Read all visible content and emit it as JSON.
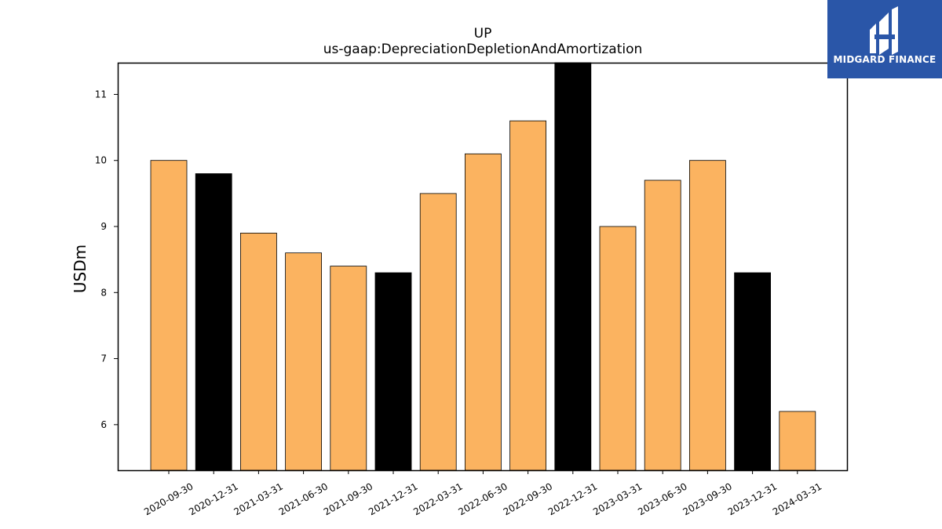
{
  "brand": {
    "name": "MIDGARD FINANCE",
    "icon": "midgard-logo-icon",
    "background_color": "#2a56a8"
  },
  "chart_data": {
    "type": "bar",
    "title": "UP",
    "subtitle": "us-gaap:DepreciationDepletionAndAmortization",
    "xlabel": "",
    "ylabel": "USDm",
    "categories": [
      "2020-09-30",
      "2020-12-31",
      "2021-03-31",
      "2021-06-30",
      "2021-09-30",
      "2021-12-31",
      "2022-03-31",
      "2022-06-30",
      "2022-09-30",
      "2022-12-31",
      "2023-03-31",
      "2023-06-30",
      "2023-09-30",
      "2023-12-31",
      "2024-03-31"
    ],
    "values": [
      10.0,
      9.8,
      8.9,
      8.6,
      8.4,
      8.3,
      9.5,
      10.1,
      10.6,
      11.5,
      9.0,
      9.7,
      10.0,
      8.3,
      6.2
    ],
    "fiscal_year_end": [
      false,
      true,
      false,
      false,
      false,
      true,
      false,
      false,
      false,
      true,
      false,
      false,
      false,
      true,
      false
    ],
    "colors": {
      "quarter": "#fbb360",
      "fiscal_year_end": "#000000",
      "edge": "#000000"
    },
    "ylim": [
      5.31,
      11.48
    ],
    "yticks": [
      6,
      7,
      8,
      9,
      10,
      11
    ],
    "grid": false,
    "legend": "none"
  }
}
